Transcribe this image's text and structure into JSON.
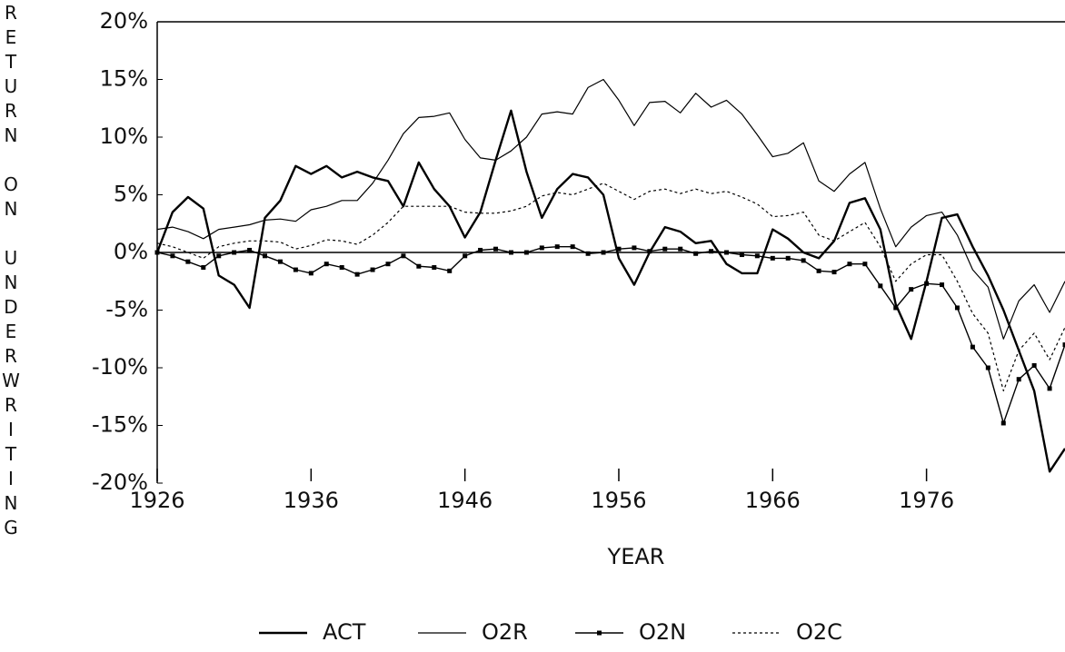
{
  "chart_data": {
    "type": "line",
    "x_label": "YEAR",
    "y_label": "RETURN ON UNDERWRITING",
    "x": [
      1926,
      1927,
      1928,
      1929,
      1930,
      1931,
      1932,
      1933,
      1934,
      1935,
      1936,
      1937,
      1938,
      1939,
      1940,
      1941,
      1942,
      1943,
      1944,
      1945,
      1946,
      1947,
      1948,
      1949,
      1950,
      1951,
      1952,
      1953,
      1954,
      1955,
      1956,
      1957,
      1958,
      1959,
      1960,
      1961,
      1962,
      1963,
      1964,
      1965,
      1966,
      1967,
      1968,
      1969,
      1970,
      1971,
      1972,
      1973,
      1974,
      1975,
      1976,
      1977,
      1978,
      1979,
      1980,
      1981,
      1982,
      1983,
      1984,
      1985
    ],
    "series": [
      {
        "name": "ACT",
        "color": "#000000",
        "width": 2.4,
        "dash": "solid",
        "marker": "none",
        "values": [
          0,
          3.5,
          4.8,
          3.8,
          -2,
          -2.8,
          -4.8,
          3,
          4.5,
          7.5,
          6.8,
          7.5,
          6.5,
          7,
          6.5,
          6.2,
          4,
          7.8,
          5.5,
          4,
          1.3,
          3.5,
          8,
          12.3,
          7,
          3,
          5.5,
          6.8,
          6.5,
          5,
          -0.5,
          -2.8,
          0,
          2.2,
          1.8,
          0.8,
          1,
          -1,
          -1.8,
          -1.8,
          2,
          1.2,
          0,
          -0.5,
          1,
          4.3,
          4.7,
          2,
          -4.5,
          -7.5,
          -2.5,
          3,
          3.3,
          0.5,
          -2,
          -5,
          -8.5,
          -12,
          -19,
          -17
        ]
      },
      {
        "name": "O2R",
        "color": "#000000",
        "width": 1.2,
        "dash": "solid",
        "marker": "none",
        "values": [
          2,
          2.2,
          1.8,
          1.2,
          2,
          2.2,
          2.4,
          2.8,
          2.9,
          2.7,
          3.7,
          4,
          4.5,
          4.5,
          6,
          8,
          10.3,
          11.7,
          11.8,
          12.1,
          9.8,
          8.2,
          8,
          8.8,
          10,
          12,
          12.2,
          12,
          14.3,
          15,
          13.2,
          11,
          13,
          13.1,
          12.1,
          13.8,
          12.6,
          13.2,
          12,
          10.2,
          8.3,
          8.6,
          9.5,
          6.2,
          5.3,
          6.8,
          7.8,
          3.8,
          0.5,
          2.2,
          3.2,
          3.5,
          1.5,
          -1.5,
          -3,
          -7.5,
          -4.2,
          -2.8,
          -5.2,
          -2.5
        ]
      },
      {
        "name": "O2N",
        "color": "#000000",
        "width": 1.4,
        "dash": "solid",
        "marker": "square",
        "values": [
          0,
          -0.3,
          -0.8,
          -1.3,
          -0.3,
          0,
          0.2,
          -0.3,
          -0.8,
          -1.5,
          -1.8,
          -1,
          -1.3,
          -1.9,
          -1.5,
          -1,
          -0.3,
          -1.2,
          -1.3,
          -1.6,
          -0.3,
          0.2,
          0.3,
          0,
          0,
          0.4,
          0.5,
          0.5,
          -0.1,
          0,
          0.3,
          0.4,
          0.1,
          0.3,
          0.3,
          -0.1,
          0.1,
          0,
          -0.2,
          -0.3,
          -0.5,
          -0.5,
          -0.7,
          -1.6,
          -1.7,
          -1,
          -1,
          -2.9,
          -4.8,
          -3.2,
          -2.7,
          -2.8,
          -4.8,
          -8.2,
          -10,
          -14.8,
          -11,
          -9.8,
          -11.8,
          -8
        ]
      },
      {
        "name": "O2C",
        "color": "#000000",
        "width": 1.2,
        "dash": "dotted",
        "marker": "none",
        "values": [
          0.8,
          0.5,
          0,
          -0.5,
          0.5,
          0.8,
          1,
          1,
          0.9,
          0.3,
          0.6,
          1.1,
          1,
          0.7,
          1.5,
          2.6,
          4,
          4,
          4,
          4,
          3.5,
          3.4,
          3.4,
          3.6,
          4,
          4.9,
          5.2,
          5,
          5.5,
          6,
          5.3,
          4.6,
          5.3,
          5.5,
          5.1,
          5.5,
          5.1,
          5.3,
          4.8,
          4.2,
          3.1,
          3.2,
          3.5,
          1.5,
          1,
          1.8,
          2.6,
          0.5,
          -2.5,
          -1,
          -0.2,
          -0.2,
          -2.5,
          -5.3,
          -7,
          -12,
          -8.5,
          -7,
          -9.3,
          -6.5
        ]
      }
    ],
    "xlim": [
      1926,
      1985
    ],
    "xticks": [
      1926,
      1936,
      1946,
      1956,
      1966,
      1976
    ],
    "ylim": [
      -20,
      20
    ],
    "yticks": [
      {
        "value": -20,
        "label": "-20%"
      },
      {
        "value": -15,
        "label": "-15%"
      },
      {
        "value": -10,
        "label": "-10%"
      },
      {
        "value": -5,
        "label": "-5%"
      },
      {
        "value": 0,
        "label": "0%"
      },
      {
        "value": 5,
        "label": "5%"
      },
      {
        "value": 10,
        "label": "10%"
      },
      {
        "value": 15,
        "label": "15%"
      },
      {
        "value": 20,
        "label": "20%"
      }
    ],
    "legend": "bottom"
  }
}
